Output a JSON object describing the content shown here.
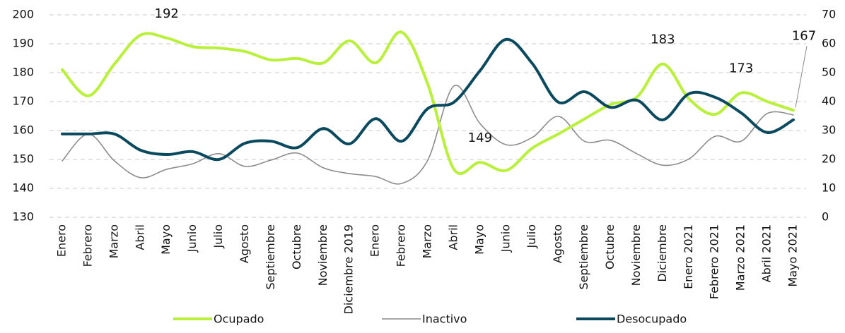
{
  "chart_data": {
    "type": "line",
    "categories": [
      "Enero",
      "Febrero",
      "Marzo",
      "Abril",
      "Mayo",
      "Junio",
      "Julio",
      "Agosto",
      "Septiembre",
      "Octubre",
      "Noviembre",
      "Diciembre 2019",
      "Enero",
      "Febrero",
      "Marzo",
      "Abril",
      "Mayo",
      "Junio",
      "Julio",
      "Agosto",
      "Septiembre",
      "Octubre",
      "Noviembre",
      "Diciembre",
      "Enero 2021",
      "Febrero 2021",
      "Marzo 2021",
      "Abril 2021",
      "Mayo 2021"
    ],
    "series": [
      {
        "name": "Ocupado",
        "color": "#b8f03a",
        "axis": "y",
        "values": [
          181,
          172,
          183,
          193,
          192,
          189,
          188.5,
          187.3,
          184.4,
          184.9,
          183.4,
          191,
          183.4,
          194,
          176,
          146.6,
          149,
          146.2,
          153.9,
          158.8,
          164,
          169,
          171.5,
          183,
          171,
          165.6,
          173,
          170,
          167
        ],
        "value_labels": [
          null,
          null,
          null,
          null,
          "192",
          null,
          null,
          null,
          null,
          null,
          null,
          null,
          null,
          null,
          null,
          null,
          "149",
          null,
          null,
          null,
          null,
          null,
          null,
          "183",
          null,
          null,
          "173",
          null,
          "167"
        ]
      },
      {
        "name": "Inactivo",
        "color": "#8c8c8c",
        "axis": "y2",
        "values": [
          19.5,
          28.8,
          19.5,
          13.7,
          16.6,
          18.5,
          22,
          17.6,
          19.8,
          22.2,
          17.1,
          15.1,
          14.1,
          11.7,
          19.8,
          45.4,
          32.4,
          25.1,
          27.6,
          34.9,
          26.3,
          26.6,
          22,
          18,
          20.2,
          28,
          26.3,
          35.9,
          35.4
        ]
      },
      {
        "name": "Desocupado",
        "color": "#0b4a5e",
        "axis": "y2",
        "values": [
          28.8,
          28.8,
          28.8,
          23.2,
          21.7,
          22.7,
          20,
          25.6,
          26.3,
          24.1,
          30.7,
          25.4,
          34.1,
          26.3,
          37.6,
          39.8,
          50.7,
          61.5,
          53.2,
          39.8,
          43.4,
          38,
          40.5,
          33.7,
          42.7,
          41.5,
          36.1,
          29.3,
          33.7
        ]
      }
    ],
    "ylim": [
      130,
      200
    ],
    "yticks": [
      130,
      140,
      150,
      160,
      170,
      180,
      190,
      200
    ],
    "y2lim": [
      0,
      70
    ],
    "y2ticks": [
      0,
      10,
      20,
      30,
      40,
      50,
      60,
      70
    ],
    "grid": true,
    "legend": "bottom"
  }
}
